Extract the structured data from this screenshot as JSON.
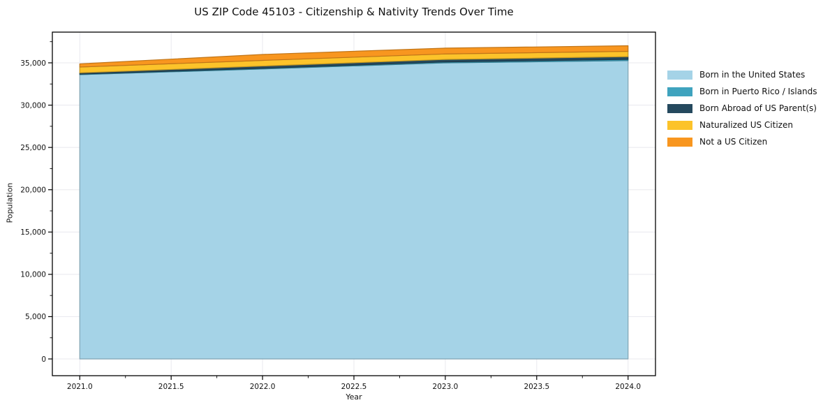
{
  "title": "US ZIP Code 45103 - Citizenship & Nativity Trends Over Time",
  "chart_data": {
    "type": "area",
    "stacked": true,
    "title": "US ZIP Code 45103 - Citizenship & Nativity Trends Over Time",
    "xlabel": "Year",
    "ylabel": "Population",
    "x": [
      2021,
      2022,
      2023,
      2024
    ],
    "series": [
      {
        "name": "Born in the United States",
        "color": "#a5d3e7",
        "values": [
          33600,
          34270,
          35000,
          35260
        ]
      },
      {
        "name": "Born in Puerto Rico / Islands",
        "color": "#3fa3be",
        "values": [
          70,
          90,
          110,
          150
        ]
      },
      {
        "name": "Born Abroad of US Parent(s)",
        "color": "#25495e",
        "values": [
          150,
          260,
          290,
          320
        ]
      },
      {
        "name": "Naturalized US Citizen",
        "color": "#fcc32a",
        "values": [
          680,
          670,
          650,
          630
        ]
      },
      {
        "name": "Not a US Citizen",
        "color": "#f8961f",
        "values": [
          380,
          700,
          690,
          660
        ]
      }
    ],
    "xlim": [
      2020.85,
      2024.15
    ],
    "ylim": [
      -1980,
      38630
    ],
    "x_ticks": [
      2021.0,
      2021.5,
      2022.0,
      2022.5,
      2023.0,
      2023.5,
      2024.0
    ],
    "x_tick_labels": [
      "2021.0",
      "2021.5",
      "2022.0",
      "2022.5",
      "2023.0",
      "2023.5",
      "2024.0"
    ],
    "y_ticks": [
      0,
      5000,
      10000,
      15000,
      20000,
      25000,
      30000,
      35000
    ],
    "y_tick_labels": [
      "0",
      "5,000",
      "10,000",
      "15,000",
      "20,000",
      "25,000",
      "30,000",
      "35,000"
    ],
    "x_minor_step": 0.25,
    "y_minor_step": 2500,
    "grid": true,
    "legend_position": "right of plot, frameless",
    "colors": {
      "grid": "#e8e8ee",
      "spine": "#000000",
      "background": "#ffffff",
      "text": "#111111"
    }
  }
}
